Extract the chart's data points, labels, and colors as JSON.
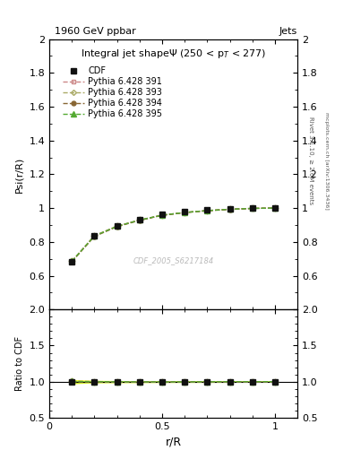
{
  "title_top": "1960 GeV ppbar",
  "title_top_right": "Jets",
  "main_title": "Integral jet shapeΨ (250 < pₜ < 277)",
  "xlabel": "r/R",
  "ylabel_main": "Psi(r/R)",
  "ylabel_ratio": "Ratio to CDF",
  "watermark": "CDF_2005_S6217184",
  "right_label_top": "Rivet 3.1.10, ≥ 2.6M events",
  "right_label_bot": "mcplots.cern.ch [arXiv:1306.3436]",
  "x_data": [
    0.1,
    0.2,
    0.3,
    0.4,
    0.5,
    0.6,
    0.7,
    0.8,
    0.9,
    1.0
  ],
  "cdf_y": [
    0.683,
    0.835,
    0.895,
    0.932,
    0.963,
    0.978,
    0.988,
    0.994,
    0.999,
    1.0
  ],
  "pythia391_y": [
    0.685,
    0.836,
    0.893,
    0.929,
    0.958,
    0.974,
    0.985,
    0.993,
    0.998,
    1.0
  ],
  "pythia393_y": [
    0.685,
    0.836,
    0.893,
    0.929,
    0.958,
    0.974,
    0.985,
    0.993,
    0.998,
    1.0
  ],
  "pythia394_y": [
    0.683,
    0.832,
    0.89,
    0.927,
    0.957,
    0.973,
    0.984,
    0.992,
    0.998,
    1.0
  ],
  "pythia395_y": [
    0.685,
    0.835,
    0.892,
    0.929,
    0.958,
    0.974,
    0.985,
    0.993,
    0.998,
    1.0
  ],
  "cdf_err": [
    0.015,
    0.008,
    0.006,
    0.005,
    0.004,
    0.003,
    0.003,
    0.002,
    0.001,
    0.001
  ],
  "ylim_main": [
    0.4,
    2.0
  ],
  "ylim_ratio": [
    0.5,
    2.0
  ],
  "yticks_main": [
    0.4,
    0.6,
    0.8,
    1.0,
    1.2,
    1.4,
    1.6,
    1.8,
    2.0
  ],
  "yticks_ratio": [
    0.5,
    1.0,
    1.5,
    2.0
  ],
  "xlim": [
    0.0,
    1.1
  ],
  "color_391": "#cc8888",
  "color_393": "#aaaa66",
  "color_394": "#886633",
  "color_395": "#55aa33",
  "color_cdf": "#111111",
  "bg_color": "#ffffff"
}
